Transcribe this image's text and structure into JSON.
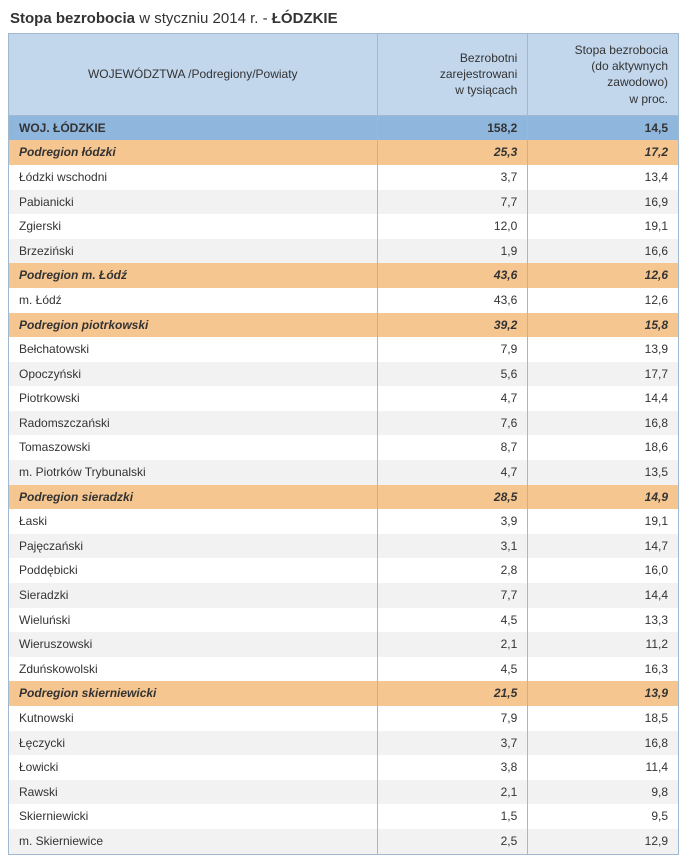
{
  "title_prefix": "Stopa bezrobocia",
  "title_mid": " w styczniu 2014 r. - ",
  "title_suffix": "ŁÓDZKIE",
  "columns": {
    "region": "WOJEWÓDZTWA /Podregiony/Powiaty",
    "col1_l1": "Bezrobotni",
    "col1_l2": "zarejestrowani",
    "col1_l3": "w tysiącach",
    "col2_l1": "Stopa bezrobocia",
    "col2_l2": "(do aktywnych zawodowo)",
    "col2_l3": "w proc."
  },
  "colors": {
    "header_bg": "#c2d6ec",
    "voiv_bg": "#8fb6dc",
    "subregion_bg": "#f6c690",
    "alt_bg": "#f2f2f2",
    "border": "#a0b8d0",
    "text": "#333333"
  },
  "rows": [
    {
      "type": "voiv",
      "name": "WOJ. ŁÓDZKIE",
      "v1": "158,2",
      "v2": "14,5"
    },
    {
      "type": "subregion",
      "name": "Podregion łódzki",
      "v1": "25,3",
      "v2": "17,2"
    },
    {
      "type": "data",
      "name": "Łódzki wschodni",
      "v1": "3,7",
      "v2": "13,4"
    },
    {
      "type": "data",
      "name": "Pabianicki",
      "v1": "7,7",
      "v2": "16,9"
    },
    {
      "type": "data",
      "name": "Zgierski",
      "v1": "12,0",
      "v2": "19,1"
    },
    {
      "type": "data",
      "name": "Brzeziński",
      "v1": "1,9",
      "v2": "16,6"
    },
    {
      "type": "subregion",
      "name": "Podregion m. Łódź",
      "v1": "43,6",
      "v2": "12,6"
    },
    {
      "type": "data",
      "name": "m. Łódź",
      "v1": "43,6",
      "v2": "12,6"
    },
    {
      "type": "subregion",
      "name": "Podregion piotrkowski",
      "v1": "39,2",
      "v2": "15,8"
    },
    {
      "type": "data",
      "name": "Bełchatowski",
      "v1": "7,9",
      "v2": "13,9"
    },
    {
      "type": "data",
      "name": "Opoczyński",
      "v1": "5,6",
      "v2": "17,7"
    },
    {
      "type": "data",
      "name": "Piotrkowski",
      "v1": "4,7",
      "v2": "14,4"
    },
    {
      "type": "data",
      "name": "Radomszczański",
      "v1": "7,6",
      "v2": "16,8"
    },
    {
      "type": "data",
      "name": "Tomaszowski",
      "v1": "8,7",
      "v2": "18,6"
    },
    {
      "type": "data",
      "name": "m. Piotrków Trybunalski",
      "v1": "4,7",
      "v2": "13,5"
    },
    {
      "type": "subregion",
      "name": "Podregion sieradzki",
      "v1": "28,5",
      "v2": "14,9"
    },
    {
      "type": "data",
      "name": "Łaski",
      "v1": "3,9",
      "v2": "19,1"
    },
    {
      "type": "data",
      "name": "Pajęczański",
      "v1": "3,1",
      "v2": "14,7"
    },
    {
      "type": "data",
      "name": "Poddębicki",
      "v1": "2,8",
      "v2": "16,0"
    },
    {
      "type": "data",
      "name": "Sieradzki",
      "v1": "7,7",
      "v2": "14,4"
    },
    {
      "type": "data",
      "name": "Wieluński",
      "v1": "4,5",
      "v2": "13,3"
    },
    {
      "type": "data",
      "name": "Wieruszowski",
      "v1": "2,1",
      "v2": "11,2"
    },
    {
      "type": "data",
      "name": "Zduńskowolski",
      "v1": "4,5",
      "v2": "16,3"
    },
    {
      "type": "subregion",
      "name": "Podregion skierniewicki",
      "v1": "21,5",
      "v2": "13,9"
    },
    {
      "type": "data",
      "name": "Kutnowski",
      "v1": "7,9",
      "v2": "18,5"
    },
    {
      "type": "data",
      "name": "Łęczycki",
      "v1": "3,7",
      "v2": "16,8"
    },
    {
      "type": "data",
      "name": "Łowicki",
      "v1": "3,8",
      "v2": "11,4"
    },
    {
      "type": "data",
      "name": "Rawski",
      "v1": "2,1",
      "v2": "9,8"
    },
    {
      "type": "data",
      "name": "Skierniewicki",
      "v1": "1,5",
      "v2": "9,5"
    },
    {
      "type": "data",
      "name": "m. Skierniewice",
      "v1": "2,5",
      "v2": "12,9"
    }
  ]
}
